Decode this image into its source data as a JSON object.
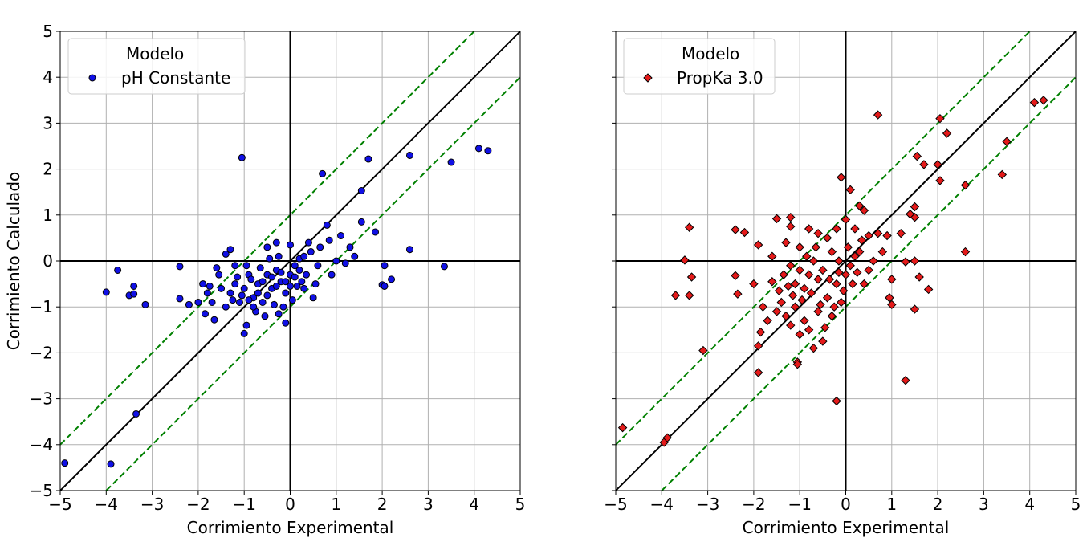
{
  "chart_data": [
    {
      "type": "scatter",
      "xlabel": "Corrimiento Experimental",
      "ylabel": "Corrimiento Calculado",
      "xlim": [
        -5,
        5
      ],
      "ylim": [
        -5,
        5
      ],
      "xticks": [
        "−5",
        "−4",
        "−3",
        "−2",
        "−1",
        "0",
        "1",
        "2",
        "3",
        "4",
        "5"
      ],
      "yticks": [
        "−5",
        "−4",
        "−3",
        "−2",
        "−1",
        "0",
        "1",
        "2",
        "3",
        "4",
        "5"
      ],
      "grid": true,
      "legend": {
        "title": "Modelo",
        "position": "top-left"
      },
      "reference_lines": {
        "identity": "y = x",
        "band": "y = x ± 1",
        "identity_color": "#000000",
        "band_color": "#008000"
      },
      "series": [
        {
          "name": "pH Constante",
          "marker": "circle",
          "color": "#1010e6",
          "points": [
            [
              -4.9,
              -4.4
            ],
            [
              -3.9,
              -4.42
            ],
            [
              -3.35,
              -3.33
            ],
            [
              -4.0,
              -0.68
            ],
            [
              -3.75,
              -0.2
            ],
            [
              -3.4,
              -0.55
            ],
            [
              -3.5,
              -0.75
            ],
            [
              -3.4,
              -0.72
            ],
            [
              -3.15,
              -0.95
            ],
            [
              -2.4,
              -0.12
            ],
            [
              -2.4,
              -0.82
            ],
            [
              -2.2,
              -0.95
            ],
            [
              -1.05,
              2.25
            ],
            [
              -1.0,
              -1.58
            ],
            [
              -0.95,
              -1.4
            ],
            [
              0.7,
              1.9
            ],
            [
              1.55,
              1.53
            ],
            [
              1.7,
              2.22
            ],
            [
              2.6,
              2.3
            ],
            [
              4.1,
              2.45
            ],
            [
              4.3,
              2.4
            ],
            [
              3.5,
              2.15
            ],
            [
              3.35,
              -0.12
            ],
            [
              2.6,
              0.25
            ],
            [
              2.05,
              -0.1
            ],
            [
              2.2,
              -0.4
            ],
            [
              2.0,
              -0.52
            ],
            [
              2.05,
              -0.55
            ],
            [
              1.85,
              0.63
            ],
            [
              1.55,
              0.85
            ],
            [
              1.1,
              0.55
            ],
            [
              0.8,
              0.78
            ],
            [
              -0.1,
              -1.35
            ],
            [
              -0.25,
              -1.15
            ],
            [
              -1.85,
              -1.15
            ],
            [
              -1.65,
              -1.28
            ],
            [
              -1.4,
              0.15
            ],
            [
              -1.3,
              0.25
            ],
            [
              -1.6,
              -0.15
            ],
            [
              -1.9,
              -0.5
            ],
            [
              -1.2,
              -0.1
            ],
            [
              -0.5,
              0.3
            ],
            [
              -0.3,
              0.4
            ],
            [
              0.0,
              0.35
            ],
            [
              0.4,
              0.4
            ],
            [
              0.3,
              -0.6
            ],
            [
              0.5,
              -0.8
            ],
            [
              0.6,
              -0.1
            ],
            [
              1.0,
              0.0
            ],
            [
              1.3,
              0.3
            ],
            [
              1.2,
              -0.05
            ],
            [
              1.4,
              0.1
            ],
            [
              0.9,
              -0.3
            ],
            [
              -0.8,
              -0.8
            ],
            [
              -0.7,
              -0.5
            ],
            [
              -0.6,
              -0.9
            ],
            [
              -0.5,
              -0.3
            ],
            [
              -0.4,
              -0.6
            ],
            [
              -0.3,
              -0.2
            ],
            [
              -0.2,
              -0.45
            ],
            [
              -0.1,
              -0.7
            ],
            [
              0.0,
              -0.3
            ],
            [
              0.1,
              -0.1
            ],
            [
              0.2,
              0.05
            ],
            [
              0.3,
              0.1
            ],
            [
              -0.9,
              -0.3
            ],
            [
              -1.0,
              -0.6
            ],
            [
              -1.1,
              -0.9
            ],
            [
              -1.2,
              -0.5
            ],
            [
              -1.3,
              -0.7
            ],
            [
              -1.5,
              -0.6
            ],
            [
              -1.7,
              -0.9
            ],
            [
              -1.8,
              -0.7
            ],
            [
              -2.0,
              -0.9
            ],
            [
              -0.75,
              -1.1
            ],
            [
              -0.55,
              -1.2
            ],
            [
              -0.35,
              -0.95
            ],
            [
              -0.15,
              -1.0
            ],
            [
              0.05,
              -0.85
            ],
            [
              0.15,
              -0.55
            ],
            [
              -0.65,
              -0.15
            ],
            [
              -0.45,
              0.05
            ],
            [
              -0.25,
              0.1
            ],
            [
              0.45,
              0.2
            ],
            [
              0.65,
              0.3
            ],
            [
              0.85,
              0.45
            ],
            [
              -1.4,
              -1.0
            ],
            [
              -1.55,
              -0.3
            ],
            [
              -1.75,
              -0.55
            ],
            [
              -0.95,
              -0.1
            ],
            [
              -0.85,
              -0.4
            ],
            [
              -0.7,
              -0.7
            ],
            [
              -0.6,
              -0.45
            ],
            [
              -0.5,
              -0.75
            ],
            [
              -0.4,
              -0.35
            ],
            [
              -0.3,
              -0.55
            ],
            [
              -0.2,
              -0.25
            ],
            [
              -0.1,
              -0.45
            ],
            [
              0.0,
              -0.55
            ],
            [
              0.1,
              -0.35
            ],
            [
              0.2,
              -0.2
            ],
            [
              0.25,
              -0.45
            ],
            [
              -1.05,
              -0.75
            ],
            [
              -1.15,
              -0.35
            ],
            [
              -1.25,
              -0.85
            ],
            [
              -0.8,
              -1.0
            ],
            [
              -0.9,
              -0.85
            ],
            [
              0.35,
              -0.3
            ],
            [
              0.55,
              -0.5
            ]
          ]
        }
      ]
    },
    {
      "type": "scatter",
      "xlabel": "Corrimiento Experimental",
      "ylabel": "",
      "xlim": [
        -5,
        5
      ],
      "ylim": [
        -5,
        5
      ],
      "xticks": [
        "−5",
        "−4",
        "−3",
        "−2",
        "−1",
        "0",
        "1",
        "2",
        "3",
        "4",
        "5"
      ],
      "yticks": [],
      "grid": true,
      "legend": {
        "title": "Modelo",
        "position": "top-left"
      },
      "reference_lines": {
        "identity": "y = x",
        "band": "y = x ± 1",
        "identity_color": "#000000",
        "band_color": "#008000"
      },
      "series": [
        {
          "name": "PropKa 3.0",
          "marker": "diamond",
          "color": "#e41a1a",
          "points": [
            [
              -4.85,
              -3.63
            ],
            [
              -3.95,
              -3.95
            ],
            [
              -3.88,
              -3.85
            ],
            [
              -3.4,
              0.73
            ],
            [
              -3.5,
              0.02
            ],
            [
              -3.35,
              -0.35
            ],
            [
              -3.7,
              -0.75
            ],
            [
              -3.4,
              -0.75
            ],
            [
              -3.1,
              -1.95
            ],
            [
              -2.4,
              0.68
            ],
            [
              -2.2,
              0.62
            ],
            [
              -2.4,
              -0.32
            ],
            [
              -2.35,
              -0.72
            ],
            [
              -1.9,
              -2.43
            ],
            [
              -1.9,
              -1.85
            ],
            [
              -1.85,
              -1.55
            ],
            [
              -1.9,
              0.35
            ],
            [
              -1.5,
              0.92
            ],
            [
              -1.2,
              0.95
            ],
            [
              -1.2,
              0.75
            ],
            [
              -1.05,
              -2.2
            ],
            [
              -1.05,
              -2.25
            ],
            [
              -0.7,
              -1.9
            ],
            [
              -0.5,
              -1.75
            ],
            [
              -0.2,
              -3.05
            ],
            [
              -0.1,
              1.82
            ],
            [
              0.1,
              1.55
            ],
            [
              0.3,
              1.2
            ],
            [
              0.4,
              1.1
            ],
            [
              0.7,
              3.18
            ],
            [
              1.3,
              -2.6
            ],
            [
              1.5,
              -1.05
            ],
            [
              1.6,
              -0.35
            ],
            [
              1.8,
              -0.62
            ],
            [
              1.5,
              0.0
            ],
            [
              1.5,
              0.95
            ],
            [
              1.5,
              1.18
            ],
            [
              1.4,
              1.02
            ],
            [
              1.55,
              2.28
            ],
            [
              1.7,
              2.1
            ],
            [
              2.05,
              3.1
            ],
            [
              2.2,
              2.78
            ],
            [
              2.0,
              2.1
            ],
            [
              2.05,
              1.75
            ],
            [
              2.6,
              1.65
            ],
            [
              2.6,
              0.2
            ],
            [
              3.4,
              1.88
            ],
            [
              3.5,
              2.6
            ],
            [
              4.1,
              3.45
            ],
            [
              4.3,
              3.5
            ],
            [
              1.3,
              -0.02
            ],
            [
              1.0,
              -0.4
            ],
            [
              1.0,
              -0.95
            ],
            [
              0.95,
              -0.8
            ],
            [
              1.2,
              0.6
            ],
            [
              0.9,
              0.55
            ],
            [
              0.7,
              0.6
            ],
            [
              0.5,
              0.55
            ],
            [
              0.2,
              0.7
            ],
            [
              0.0,
              0.9
            ],
            [
              -0.2,
              0.7
            ],
            [
              -0.4,
              0.5
            ],
            [
              -0.6,
              0.6
            ],
            [
              -0.8,
              0.7
            ],
            [
              -1.0,
              0.3
            ],
            [
              -1.3,
              0.4
            ],
            [
              -1.6,
              0.1
            ],
            [
              -1.45,
              -0.65
            ],
            [
              -1.6,
              -0.45
            ],
            [
              -1.4,
              -0.9
            ],
            [
              -1.3,
              -1.2
            ],
            [
              -1.2,
              -1.4
            ],
            [
              -1.1,
              -1.0
            ],
            [
              -1.0,
              -1.6
            ],
            [
              -0.9,
              -1.3
            ],
            [
              -0.8,
              -1.5
            ],
            [
              -0.6,
              -1.1
            ],
            [
              -0.4,
              -0.8
            ],
            [
              -0.3,
              -1.2
            ],
            [
              -0.2,
              -0.5
            ],
            [
              -0.1,
              -0.9
            ],
            [
              0.0,
              -0.3
            ],
            [
              0.1,
              -0.1
            ],
            [
              0.2,
              0.1
            ],
            [
              0.3,
              0.2
            ],
            [
              -0.5,
              -0.2
            ],
            [
              -0.6,
              -0.4
            ],
            [
              -0.7,
              0.0
            ],
            [
              -0.8,
              -0.3
            ],
            [
              -0.9,
              -0.6
            ],
            [
              -1.0,
              -0.2
            ],
            [
              -1.1,
              -0.5
            ],
            [
              -1.2,
              -0.1
            ],
            [
              -1.7,
              -1.3
            ],
            [
              -1.8,
              -1.0
            ],
            [
              -2.0,
              -0.5
            ],
            [
              -0.3,
              0.2
            ],
            [
              -0.15,
              0.0
            ],
            [
              0.05,
              0.3
            ],
            [
              0.4,
              -0.5
            ],
            [
              0.5,
              -0.2
            ],
            [
              0.6,
              0.0
            ],
            [
              0.8,
              0.2
            ],
            [
              -0.45,
              -1.45
            ],
            [
              -0.25,
              -1.0
            ],
            [
              -0.05,
              -0.65
            ],
            [
              0.15,
              -0.5
            ],
            [
              -1.5,
              -1.1
            ],
            [
              -1.35,
              -0.3
            ],
            [
              -0.95,
              -0.85
            ],
            [
              -0.75,
              -0.7
            ],
            [
              -0.55,
              -0.95
            ],
            [
              -0.35,
              -0.4
            ],
            [
              -0.15,
              -0.25
            ],
            [
              0.25,
              -0.25
            ],
            [
              0.35,
              0.45
            ],
            [
              -0.65,
              0.3
            ],
            [
              -0.85,
              0.1
            ],
            [
              -1.15,
              -0.75
            ],
            [
              -1.25,
              -0.55
            ]
          ]
        }
      ]
    }
  ]
}
